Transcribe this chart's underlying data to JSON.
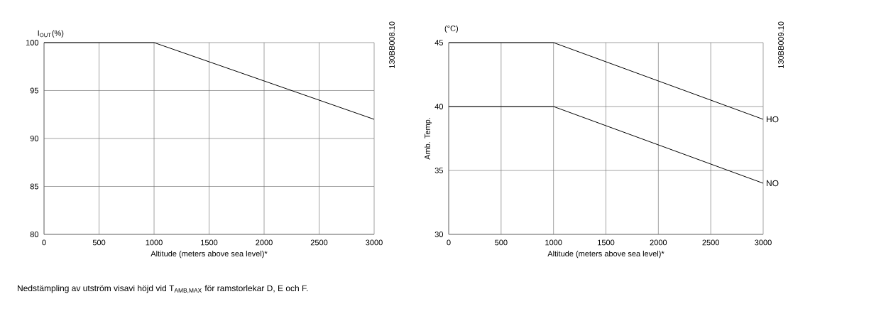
{
  "chart_data": [
    {
      "type": "line",
      "ylabel": "I$_{OUT}$(%)",
      "xlabel": "Altitude (meters above sea level)*",
      "x": [
        0,
        1000,
        3000
      ],
      "series": [
        {
          "color": "#000000",
          "values": [
            100,
            100,
            92
          ]
        }
      ],
      "xlim": [
        0,
        3000
      ],
      "xticks": [
        0,
        500,
        1000,
        1500,
        2000,
        2500,
        3000
      ],
      "ylim": [
        80,
        100
      ],
      "yticks": [
        80,
        85,
        90,
        95,
        100
      ],
      "grid": true,
      "annotations": [
        "130BB008.10",
        "Nedstämpling av utström visavi höjd vid T$_{AMB,MAX}$ för ramstorlekar D, E och F."
      ]
    },
    {
      "type": "line",
      "ylabel": "Amb. Temp.",
      "xlabel": "Altitude (meters above sea level)*",
      "x": [
        0,
        1000,
        3000
      ],
      "series": [
        {
          "name": "HO",
          "color": "#000000",
          "values": [
            45,
            45,
            39
          ]
        },
        {
          "name": "NO",
          "color": "#000000",
          "values": [
            40,
            40,
            34
          ]
        }
      ],
      "xlim": [
        0,
        3000
      ],
      "xticks": [
        0,
        500,
        1000,
        1500,
        2000,
        2500,
        3000
      ],
      "ylim": [
        30,
        45
      ],
      "yticks": [
        30,
        35,
        40,
        45
      ],
      "grid": true,
      "annotations": [
        "(°C)",
        "130BB009.10"
      ]
    }
  ]
}
